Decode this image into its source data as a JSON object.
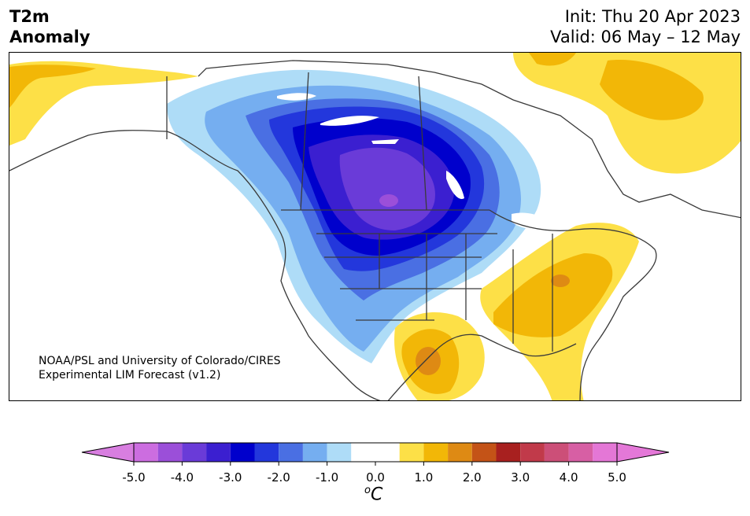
{
  "header": {
    "variable_line1": "T2m",
    "variable_line2": "Anomaly",
    "init": "Init: Thu 20 Apr 2023",
    "valid": "Valid: 06 May – 12 May"
  },
  "credit": {
    "line1": "NOAA/PSL and University of Colorado/CIRES",
    "line2": "Experimental LIM Forecast (v1.2)"
  },
  "colorbar": {
    "unit_base": "C",
    "unit_superscript": "o",
    "tick_labels": [
      "-5.0",
      "-4.0",
      "-3.0",
      "-2.0",
      "-1.0",
      "0.0",
      "1.0",
      "2.0",
      "3.0",
      "4.0",
      "5.0"
    ],
    "tick_values": [
      -5,
      -4,
      -3,
      -2,
      -1,
      0,
      1,
      2,
      3,
      4,
      5
    ],
    "bins": [
      {
        "from": -5.0,
        "to": -4.5,
        "color": "#cc6de0"
      },
      {
        "from": -4.5,
        "to": -4.0,
        "color": "#9b4fd9"
      },
      {
        "from": -4.0,
        "to": -3.5,
        "color": "#6a3bd8"
      },
      {
        "from": -3.5,
        "to": -3.0,
        "color": "#3b1fd0"
      },
      {
        "from": -3.0,
        "to": -2.5,
        "color": "#0000cc"
      },
      {
        "from": -2.5,
        "to": -2.0,
        "color": "#2337dc"
      },
      {
        "from": -2.0,
        "to": -1.5,
        "color": "#4a6fe3"
      },
      {
        "from": -1.5,
        "to": -1.0,
        "color": "#75aef0"
      },
      {
        "from": -1.0,
        "to": -0.5,
        "color": "#aedcf7"
      },
      {
        "from": -0.5,
        "to": 0.0,
        "color": "#ffffff"
      },
      {
        "from": 0.0,
        "to": 0.5,
        "color": "#ffffff"
      },
      {
        "from": 0.5,
        "to": 1.0,
        "color": "#fde047"
      },
      {
        "from": 1.0,
        "to": 1.5,
        "color": "#f2b707"
      },
      {
        "from": 1.5,
        "to": 2.0,
        "color": "#de8a14"
      },
      {
        "from": 2.0,
        "to": 2.5,
        "color": "#c45317"
      },
      {
        "from": 2.5,
        "to": 3.0,
        "color": "#a8201f"
      },
      {
        "from": 3.0,
        "to": 3.5,
        "color": "#c13a4a"
      },
      {
        "from": 3.5,
        "to": 4.0,
        "color": "#cc4f78"
      },
      {
        "from": 4.0,
        "to": 4.5,
        "color": "#d75fa4"
      },
      {
        "from": 4.5,
        "to": 5.0,
        "color": "#e477d6"
      }
    ],
    "under_color": "#d87ee0",
    "over_color": "#e478d8",
    "range": [
      -5,
      5
    ]
  },
  "map": {
    "region": "North America",
    "cold_anomaly_center": "northern Rockies / western Canada",
    "warm_anomaly_regions": [
      "southeastern US",
      "south Texas",
      "Labrador / Greenland",
      "Alaska"
    ],
    "colors": {
      "ocean": "#ffffff",
      "coastline": "#3a3a3a",
      "lakes": "#ffffff"
    }
  }
}
